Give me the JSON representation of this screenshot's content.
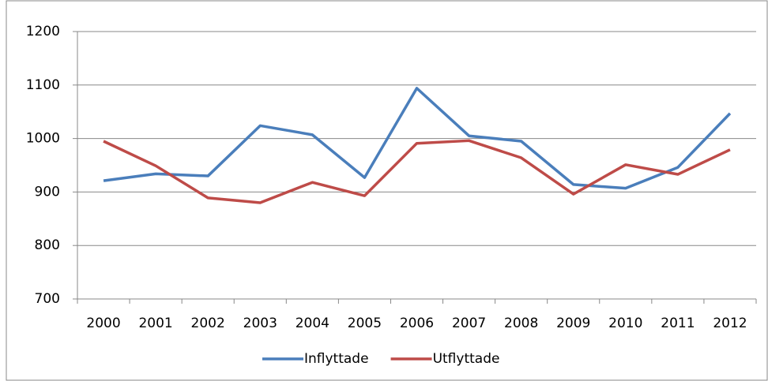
{
  "chart_data": {
    "type": "line",
    "categories": [
      "2000",
      "2001",
      "2002",
      "2003",
      "2004",
      "2005",
      "2006",
      "2007",
      "2008",
      "2009",
      "2010",
      "2011",
      "2012"
    ],
    "series": [
      {
        "name": "Inflyttade",
        "color": "#4a7ebb",
        "values": [
          921,
          934,
          930,
          1024,
          1007,
          927,
          1094,
          1005,
          995,
          914,
          907,
          946,
          1047
        ]
      },
      {
        "name": "Utflyttade",
        "color": "#be4b48",
        "values": [
          995,
          949,
          889,
          880,
          918,
          893,
          991,
          996,
          964,
          896,
          951,
          933,
          979
        ]
      }
    ],
    "ylim": [
      700,
      1200
    ],
    "yticks": [
      700,
      800,
      900,
      1000,
      1100,
      1200
    ],
    "grid": true,
    "legend": "bottom"
  }
}
